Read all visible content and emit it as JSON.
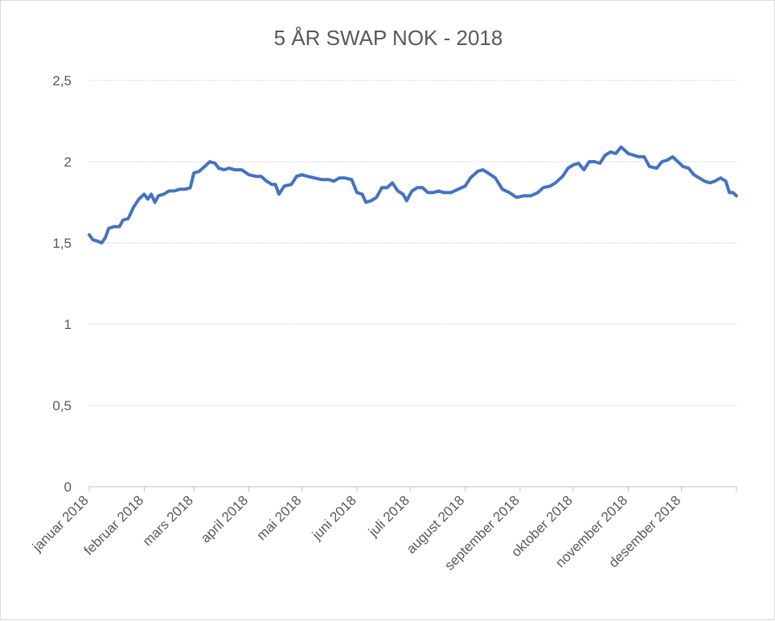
{
  "chart_data": {
    "type": "line",
    "title": "5 ÅR SWAP NOK - 2018",
    "xlabel": "",
    "ylabel": "",
    "ylim": [
      0,
      2.5
    ],
    "y_ticks": [
      "0",
      "0,5",
      "1",
      "1,5",
      "2",
      "2,5"
    ],
    "grid": true,
    "legend": "none",
    "series_color": "#4472C4",
    "categories": [
      "januar 2018",
      "februar 2018",
      "mars 2018",
      "april 2018",
      "mai 2018",
      "juni 2018",
      "juli 2018",
      "august 2018",
      "september 2018",
      "oktober 2018",
      "november 2018",
      "desember 2018"
    ],
    "x_range": [
      "2018-01-01",
      "2019-01-01"
    ],
    "series": [
      {
        "points": [
          [
            "2018-01-01",
            1.55
          ],
          [
            "2018-01-03",
            1.52
          ],
          [
            "2018-01-06",
            1.51
          ],
          [
            "2018-01-08",
            1.5
          ],
          [
            "2018-01-10",
            1.53
          ],
          [
            "2018-01-12",
            1.59
          ],
          [
            "2018-01-15",
            1.6
          ],
          [
            "2018-01-18",
            1.6
          ],
          [
            "2018-01-20",
            1.64
          ],
          [
            "2018-01-23",
            1.65
          ],
          [
            "2018-01-26",
            1.72
          ],
          [
            "2018-01-29",
            1.77
          ],
          [
            "2018-02-01",
            1.8
          ],
          [
            "2018-02-03",
            1.77
          ],
          [
            "2018-02-05",
            1.8
          ],
          [
            "2018-02-07",
            1.75
          ],
          [
            "2018-02-09",
            1.79
          ],
          [
            "2018-02-12",
            1.8
          ],
          [
            "2018-02-15",
            1.82
          ],
          [
            "2018-02-18",
            1.82
          ],
          [
            "2018-02-21",
            1.83
          ],
          [
            "2018-02-24",
            1.83
          ],
          [
            "2018-02-27",
            1.84
          ],
          [
            "2018-03-01",
            1.93
          ],
          [
            "2018-03-04",
            1.94
          ],
          [
            "2018-03-07",
            1.97
          ],
          [
            "2018-03-10",
            2.0
          ],
          [
            "2018-03-13",
            1.99
          ],
          [
            "2018-03-15",
            1.96
          ],
          [
            "2018-03-18",
            1.95
          ],
          [
            "2018-03-21",
            1.96
          ],
          [
            "2018-03-24",
            1.95
          ],
          [
            "2018-03-28",
            1.95
          ],
          [
            "2018-04-01",
            1.92
          ],
          [
            "2018-04-05",
            1.91
          ],
          [
            "2018-04-08",
            1.91
          ],
          [
            "2018-04-11",
            1.88
          ],
          [
            "2018-04-14",
            1.86
          ],
          [
            "2018-04-16",
            1.86
          ],
          [
            "2018-04-18",
            1.8
          ],
          [
            "2018-04-21",
            1.85
          ],
          [
            "2018-04-25",
            1.86
          ],
          [
            "2018-04-28",
            1.91
          ],
          [
            "2018-05-01",
            1.92
          ],
          [
            "2018-05-04",
            1.91
          ],
          [
            "2018-05-08",
            1.9
          ],
          [
            "2018-05-12",
            1.89
          ],
          [
            "2018-05-16",
            1.89
          ],
          [
            "2018-05-19",
            1.88
          ],
          [
            "2018-05-22",
            1.9
          ],
          [
            "2018-05-25",
            1.9
          ],
          [
            "2018-05-29",
            1.89
          ],
          [
            "2018-06-01",
            1.81
          ],
          [
            "2018-06-04",
            1.8
          ],
          [
            "2018-06-06",
            1.75
          ],
          [
            "2018-06-09",
            1.76
          ],
          [
            "2018-06-12",
            1.78
          ],
          [
            "2018-06-15",
            1.84
          ],
          [
            "2018-06-18",
            1.84
          ],
          [
            "2018-06-21",
            1.87
          ],
          [
            "2018-06-24",
            1.82
          ],
          [
            "2018-06-27",
            1.8
          ],
          [
            "2018-06-29",
            1.76
          ],
          [
            "2018-07-02",
            1.82
          ],
          [
            "2018-07-05",
            1.84
          ],
          [
            "2018-07-08",
            1.84
          ],
          [
            "2018-07-11",
            1.81
          ],
          [
            "2018-07-14",
            1.81
          ],
          [
            "2018-07-17",
            1.82
          ],
          [
            "2018-07-20",
            1.81
          ],
          [
            "2018-07-24",
            1.81
          ],
          [
            "2018-07-28",
            1.83
          ],
          [
            "2018-08-01",
            1.85
          ],
          [
            "2018-08-04",
            1.9
          ],
          [
            "2018-08-08",
            1.94
          ],
          [
            "2018-08-11",
            1.95
          ],
          [
            "2018-08-14",
            1.93
          ],
          [
            "2018-08-18",
            1.9
          ],
          [
            "2018-08-22",
            1.83
          ],
          [
            "2018-08-26",
            1.81
          ],
          [
            "2018-08-30",
            1.78
          ],
          [
            "2018-09-03",
            1.79
          ],
          [
            "2018-09-07",
            1.79
          ],
          [
            "2018-09-11",
            1.81
          ],
          [
            "2018-09-14",
            1.84
          ],
          [
            "2018-09-18",
            1.85
          ],
          [
            "2018-09-21",
            1.87
          ],
          [
            "2018-09-25",
            1.91
          ],
          [
            "2018-09-28",
            1.96
          ],
          [
            "2018-10-01",
            1.98
          ],
          [
            "2018-10-04",
            1.99
          ],
          [
            "2018-10-07",
            1.95
          ],
          [
            "2018-10-10",
            2.0
          ],
          [
            "2018-10-13",
            2.0
          ],
          [
            "2018-10-16",
            1.99
          ],
          [
            "2018-10-19",
            2.04
          ],
          [
            "2018-10-22",
            2.06
          ],
          [
            "2018-10-25",
            2.05
          ],
          [
            "2018-10-28",
            2.09
          ],
          [
            "2018-11-01",
            2.05
          ],
          [
            "2018-11-04",
            2.04
          ],
          [
            "2018-11-07",
            2.03
          ],
          [
            "2018-11-10",
            2.03
          ],
          [
            "2018-11-13",
            1.97
          ],
          [
            "2018-11-17",
            1.96
          ],
          [
            "2018-11-20",
            2.0
          ],
          [
            "2018-11-23",
            2.01
          ],
          [
            "2018-11-26",
            2.03
          ],
          [
            "2018-11-29",
            2.0
          ],
          [
            "2018-12-02",
            1.97
          ],
          [
            "2018-12-05",
            1.96
          ],
          [
            "2018-12-08",
            1.92
          ],
          [
            "2018-12-11",
            1.9
          ],
          [
            "2018-12-14",
            1.88
          ],
          [
            "2018-12-17",
            1.87
          ],
          [
            "2018-12-20",
            1.88
          ],
          [
            "2018-12-23",
            1.9
          ],
          [
            "2018-12-26",
            1.88
          ],
          [
            "2018-12-28",
            1.81
          ],
          [
            "2018-12-30",
            1.81
          ],
          [
            "2019-01-01",
            1.79
          ]
        ]
      }
    ]
  }
}
